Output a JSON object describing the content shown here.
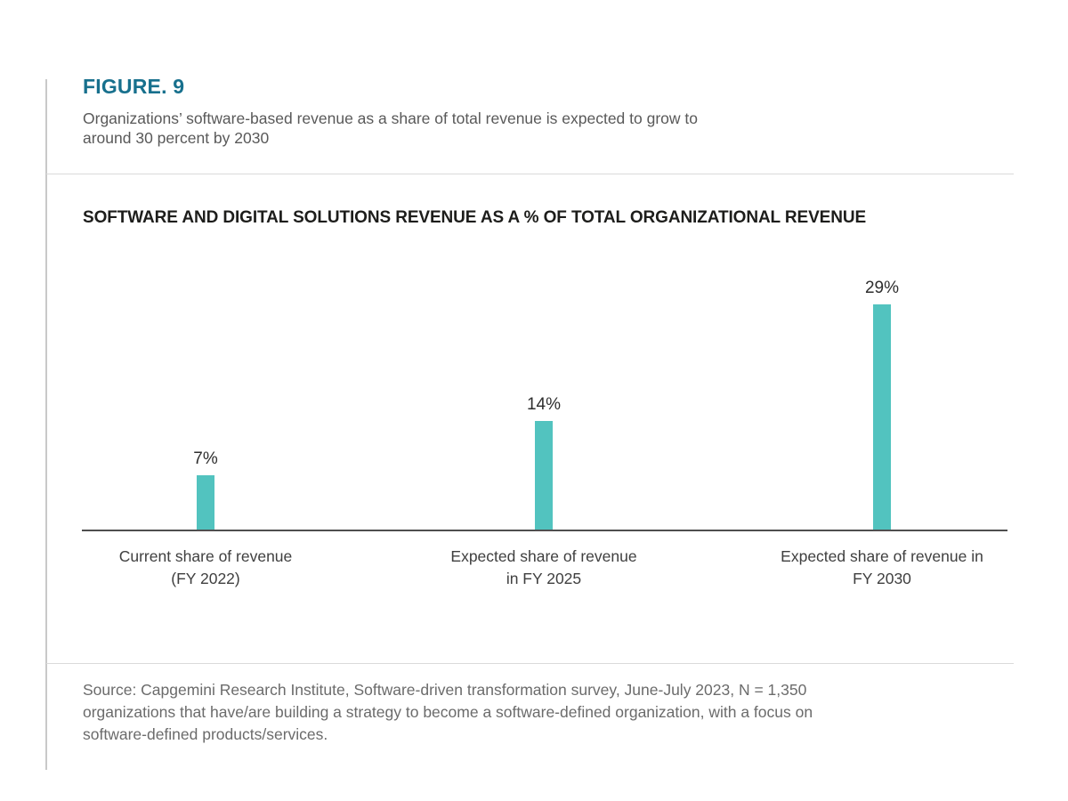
{
  "figure": {
    "label": "FIGURE. 9",
    "subtitle": "Organizations’ software-based revenue as a share of total revenue is expected to grow to\naround 30 percent by 2030"
  },
  "chart_data": {
    "type": "bar",
    "title": "SOFTWARE AND DIGITAL SOLUTIONS REVENUE AS A % OF TOTAL ORGANIZATIONAL REVENUE",
    "categories": [
      "Current share of revenue\n(FY 2022)",
      "Expected share of revenue\nin FY 2025",
      "Expected share of revenue in\nFY 2030"
    ],
    "values": [
      7,
      14,
      29
    ],
    "value_labels": [
      "7%",
      "14%",
      "29%"
    ],
    "unit": "%",
    "ylim": [
      0,
      34
    ],
    "grid": false,
    "legend": false,
    "bar_color": "#52c3bf",
    "axis_color": "#4f4f4f"
  },
  "source": {
    "text": "Source: Capgemini Research Institute, Software-driven transformation survey, June-July 2023, N = 1,350\norganizations that have/are building a strategy to become a software-defined organization, with a focus on\nsoftware-defined products/services."
  },
  "colors": {
    "accent_teal": "#52c3bf",
    "figure_label": "#17708d",
    "title_text": "#1d1d1b",
    "subtitle_text": "#595959",
    "category_text": "#3f3f3f",
    "value_text": "#2e2e2e",
    "source_text": "#6b6b6b",
    "divider": "#dadada",
    "left_rule": "#c9c9c9",
    "axis": "#4f4f4f"
  }
}
